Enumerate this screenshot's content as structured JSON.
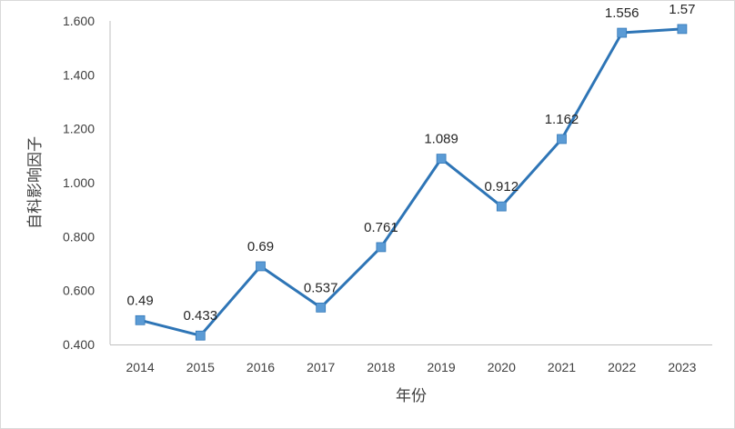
{
  "chart_data": {
    "type": "line",
    "xlabel": "年份",
    "ylabel": "自科影响因子",
    "categories": [
      "2014",
      "2015",
      "2016",
      "2017",
      "2018",
      "2019",
      "2020",
      "2021",
      "2022",
      "2023"
    ],
    "values": [
      0.49,
      0.433,
      0.69,
      0.537,
      0.761,
      1.089,
      0.912,
      1.162,
      1.556,
      1.57
    ],
    "data_labels": [
      "0.49",
      "0.433",
      "0.69",
      "0.537",
      "0.761",
      "1.089",
      "0.912",
      "1.162",
      "1.556",
      "1.57"
    ],
    "ylim": [
      0.4,
      1.6
    ],
    "yticks": [
      "0.400",
      "0.600",
      "0.800",
      "1.000",
      "1.200",
      "1.400",
      "1.600"
    ],
    "grid": false,
    "legend": "none",
    "line_color": "#2e75b6",
    "marker_color": "#5b9bd5"
  }
}
